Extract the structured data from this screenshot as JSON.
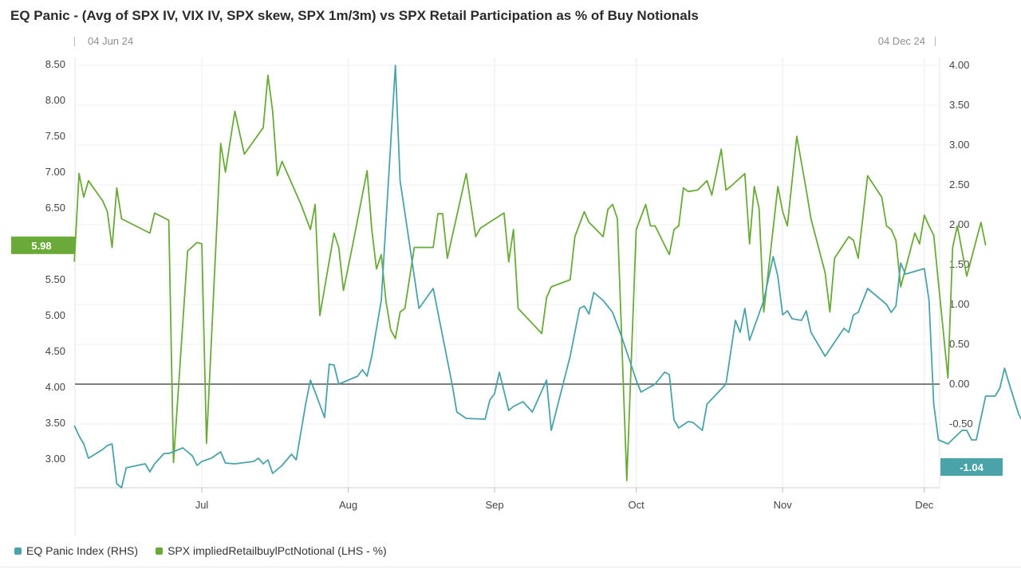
{
  "chart_data": {
    "type": "line",
    "title": "EQ Panic - (Avg of SPX IV, VIX IV, SPX skew, SPX 1m/3m) vs SPX Retail Participation as % of Buy Notionals",
    "range_start": "04 Jun 24",
    "range_end": "04 Dec 24",
    "x_tick_labels": [
      "Jul",
      "Aug",
      "Sep",
      "Oct",
      "Nov",
      "Dec"
    ],
    "x_tick_dates": [
      "2024-07-01",
      "2024-08-01",
      "2024-09-01",
      "2024-10-01",
      "2024-11-01",
      "2024-12-01"
    ],
    "x_range": [
      "2024-06-04",
      "2024-12-04"
    ],
    "left_axis": {
      "min": 2.6,
      "max": 8.6,
      "ticks": [
        "8.50",
        "8.00",
        "7.50",
        "7.00",
        "6.50",
        "5.50",
        "5.00",
        "4.50",
        "4.00",
        "3.50",
        "3.00"
      ]
    },
    "right_axis": {
      "min": -1.3,
      "max": 4.1,
      "ticks": [
        "4.00",
        "3.50",
        "3.00",
        "2.50",
        "2.00",
        "1.50",
        "1.00",
        "0.50",
        "0.00",
        "-0.50"
      ]
    },
    "zero_line": 0,
    "grid": true,
    "legend_position": "bottom-left",
    "series": [
      {
        "name": "SPX impliedRetailbuylPctNotional (LHS - %)",
        "axis": "left",
        "color": "#6aaa38",
        "last_label": "5.98",
        "points": [
          [
            "2024-06-04",
            5.75
          ],
          [
            "2024-06-05",
            6.98
          ],
          [
            "2024-06-06",
            6.65
          ],
          [
            "2024-06-07",
            6.88
          ],
          [
            "2024-06-10",
            6.6
          ],
          [
            "2024-06-11",
            6.45
          ],
          [
            "2024-06-12",
            5.95
          ],
          [
            "2024-06-13",
            6.78
          ],
          [
            "2024-06-14",
            6.35
          ],
          [
            "2024-06-17",
            6.25
          ],
          [
            "2024-06-20",
            6.15
          ],
          [
            "2024-06-21",
            6.43
          ],
          [
            "2024-06-24",
            6.33
          ],
          [
            "2024-06-25",
            2.95
          ],
          [
            "2024-06-28",
            5.9
          ],
          [
            "2024-06-30",
            6.02
          ],
          [
            "2024-07-01",
            6.0
          ],
          [
            "2024-07-02",
            3.22
          ],
          [
            "2024-07-05",
            7.4
          ],
          [
            "2024-07-06",
            7.0
          ],
          [
            "2024-07-08",
            7.85
          ],
          [
            "2024-07-10",
            7.25
          ],
          [
            "2024-07-14",
            7.62
          ],
          [
            "2024-07-15",
            8.35
          ],
          [
            "2024-07-16",
            7.85
          ],
          [
            "2024-07-17",
            6.95
          ],
          [
            "2024-07-18",
            7.15
          ],
          [
            "2024-07-22",
            6.55
          ],
          [
            "2024-07-24",
            6.2
          ],
          [
            "2024-07-25",
            6.55
          ],
          [
            "2024-07-26",
            5.0
          ],
          [
            "2024-07-29",
            6.15
          ],
          [
            "2024-07-30",
            5.95
          ],
          [
            "2024-07-31",
            5.35
          ],
          [
            "2024-08-02",
            6.0
          ],
          [
            "2024-08-05",
            7.02
          ],
          [
            "2024-08-06",
            6.2
          ],
          [
            "2024-08-07",
            5.65
          ],
          [
            "2024-08-08",
            5.85
          ],
          [
            "2024-08-09",
            5.2
          ],
          [
            "2024-08-10",
            4.8
          ],
          [
            "2024-08-11",
            4.68
          ],
          [
            "2024-08-12",
            5.05
          ],
          [
            "2024-08-13",
            5.1
          ],
          [
            "2024-08-15",
            5.95
          ],
          [
            "2024-08-16",
            5.95
          ],
          [
            "2024-08-19",
            5.95
          ],
          [
            "2024-08-20",
            6.42
          ],
          [
            "2024-08-21",
            6.42
          ],
          [
            "2024-08-22",
            5.8
          ],
          [
            "2024-08-26",
            6.98
          ],
          [
            "2024-08-28",
            6.1
          ],
          [
            "2024-08-29",
            6.22
          ],
          [
            "2024-09-03",
            6.43
          ],
          [
            "2024-09-04",
            5.75
          ],
          [
            "2024-09-05",
            6.2
          ],
          [
            "2024-09-06",
            5.1
          ],
          [
            "2024-09-11",
            4.75
          ],
          [
            "2024-09-12",
            5.25
          ],
          [
            "2024-09-13",
            5.4
          ],
          [
            "2024-09-15",
            5.45
          ],
          [
            "2024-09-17",
            5.5
          ],
          [
            "2024-09-18",
            6.1
          ],
          [
            "2024-09-20",
            6.45
          ],
          [
            "2024-09-21",
            6.3
          ],
          [
            "2024-09-24",
            6.1
          ],
          [
            "2024-09-25",
            6.48
          ],
          [
            "2024-09-26",
            6.55
          ],
          [
            "2024-09-27",
            6.35
          ],
          [
            "2024-09-29",
            2.7
          ],
          [
            "2024-10-01",
            6.2
          ],
          [
            "2024-10-03",
            6.55
          ],
          [
            "2024-10-04",
            6.25
          ],
          [
            "2024-10-05",
            6.25
          ],
          [
            "2024-10-08",
            5.85
          ],
          [
            "2024-10-09",
            6.2
          ],
          [
            "2024-10-10",
            6.25
          ],
          [
            "2024-10-11",
            6.78
          ],
          [
            "2024-10-12",
            6.73
          ],
          [
            "2024-10-14",
            6.75
          ],
          [
            "2024-10-16",
            6.88
          ],
          [
            "2024-10-17",
            6.68
          ],
          [
            "2024-10-19",
            7.32
          ],
          [
            "2024-10-20",
            6.75
          ],
          [
            "2024-10-21",
            6.8
          ],
          [
            "2024-10-24",
            6.98
          ],
          [
            "2024-10-25",
            6.0
          ],
          [
            "2024-10-26",
            6.8
          ],
          [
            "2024-10-27",
            6.5
          ],
          [
            "2024-10-28",
            5.05
          ],
          [
            "2024-10-31",
            6.8
          ],
          [
            "2024-11-01",
            6.45
          ],
          [
            "2024-11-02",
            6.25
          ],
          [
            "2024-11-04",
            7.5
          ],
          [
            "2024-11-06",
            6.75
          ],
          [
            "2024-11-07",
            6.35
          ],
          [
            "2024-11-10",
            5.6
          ],
          [
            "2024-11-11",
            5.05
          ],
          [
            "2024-11-12",
            5.8
          ],
          [
            "2024-11-15",
            6.1
          ],
          [
            "2024-11-16",
            6.05
          ],
          [
            "2024-11-17",
            5.8
          ],
          [
            "2024-11-19",
            6.95
          ],
          [
            "2024-11-22",
            6.65
          ],
          [
            "2024-11-23",
            6.25
          ],
          [
            "2024-11-24",
            6.2
          ],
          [
            "2024-11-25",
            6.05
          ],
          [
            "2024-11-26",
            5.4
          ],
          [
            "2024-11-29",
            6.15
          ],
          [
            "2024-11-30",
            6.0
          ],
          [
            "2024-12-01",
            6.4
          ],
          [
            "2024-12-02",
            6.25
          ],
          [
            "2024-12-03",
            6.12
          ],
          [
            "2024-12-06",
            4.13
          ],
          [
            "2024-12-07",
            5.95
          ],
          [
            "2024-12-08",
            6.25
          ],
          [
            "2024-12-10",
            5.55
          ],
          [
            "2024-12-13",
            6.3
          ],
          [
            "2024-12-14",
            5.98
          ]
        ]
      },
      {
        "name": "EQ Panic Index (RHS)",
        "axis": "right",
        "color": "#4aa3a8",
        "last_label": "-1.04",
        "points": [
          [
            "2024-06-04",
            -0.52
          ],
          [
            "2024-06-05",
            -0.65
          ],
          [
            "2024-06-06",
            -0.75
          ],
          [
            "2024-06-07",
            -0.93
          ],
          [
            "2024-06-10",
            -0.82
          ],
          [
            "2024-06-11",
            -0.77
          ],
          [
            "2024-06-12",
            -0.75
          ],
          [
            "2024-06-13",
            -1.25
          ],
          [
            "2024-06-14",
            -1.3
          ],
          [
            "2024-06-15",
            -1.05
          ],
          [
            "2024-06-19",
            -1.0
          ],
          [
            "2024-06-20",
            -1.1
          ],
          [
            "2024-06-21",
            -1.0
          ],
          [
            "2024-06-23",
            -0.87
          ],
          [
            "2024-06-24",
            -0.87
          ],
          [
            "2024-06-27",
            -0.8
          ],
          [
            "2024-06-28",
            -0.85
          ],
          [
            "2024-06-29",
            -0.9
          ],
          [
            "2024-06-30",
            -1.02
          ],
          [
            "2024-07-01",
            -0.97
          ],
          [
            "2024-07-03",
            -0.93
          ],
          [
            "2024-07-05",
            -0.85
          ],
          [
            "2024-07-06",
            -0.99
          ],
          [
            "2024-07-08",
            -1.0
          ],
          [
            "2024-07-12",
            -0.97
          ],
          [
            "2024-07-13",
            -0.93
          ],
          [
            "2024-07-14",
            -1.0
          ],
          [
            "2024-07-15",
            -0.95
          ],
          [
            "2024-07-16",
            -1.12
          ],
          [
            "2024-07-18",
            -1.02
          ],
          [
            "2024-07-20",
            -0.88
          ],
          [
            "2024-07-21",
            -0.95
          ],
          [
            "2024-07-23",
            -0.25
          ],
          [
            "2024-07-24",
            0.05
          ],
          [
            "2024-07-25",
            -0.1
          ],
          [
            "2024-07-27",
            -0.42
          ],
          [
            "2024-07-28",
            0.25
          ],
          [
            "2024-07-29",
            0.24
          ],
          [
            "2024-07-30",
            0.0
          ],
          [
            "2024-08-01",
            0.05
          ],
          [
            "2024-08-03",
            0.1
          ],
          [
            "2024-08-04",
            0.18
          ],
          [
            "2024-08-05",
            0.1
          ],
          [
            "2024-08-06",
            0.35
          ],
          [
            "2024-08-08",
            1.05
          ],
          [
            "2024-08-11",
            4.0
          ],
          [
            "2024-08-12",
            2.55
          ],
          [
            "2024-08-13",
            2.15
          ],
          [
            "2024-08-16",
            0.95
          ],
          [
            "2024-08-19",
            1.2
          ],
          [
            "2024-08-23",
            0.0
          ],
          [
            "2024-08-24",
            -0.35
          ],
          [
            "2024-08-26",
            -0.43
          ],
          [
            "2024-08-30",
            -0.44
          ],
          [
            "2024-08-31",
            -0.2
          ],
          [
            "2024-09-01",
            -0.12
          ],
          [
            "2024-09-02",
            0.15
          ],
          [
            "2024-09-04",
            -0.33
          ],
          [
            "2024-09-05",
            -0.28
          ],
          [
            "2024-09-06",
            -0.25
          ],
          [
            "2024-09-07",
            -0.22
          ],
          [
            "2024-09-09",
            -0.35
          ],
          [
            "2024-09-12",
            0.05
          ],
          [
            "2024-09-13",
            -0.58
          ],
          [
            "2024-09-17",
            0.35
          ],
          [
            "2024-09-19",
            0.95
          ],
          [
            "2024-09-20",
            0.98
          ],
          [
            "2024-09-21",
            0.88
          ],
          [
            "2024-09-22",
            1.15
          ],
          [
            "2024-09-24",
            1.05
          ],
          [
            "2024-09-26",
            0.9
          ],
          [
            "2024-09-28",
            0.58
          ],
          [
            "2024-10-01",
            0.05
          ],
          [
            "2024-10-02",
            -0.1
          ],
          [
            "2024-10-05",
            0.0
          ],
          [
            "2024-10-07",
            0.15
          ],
          [
            "2024-10-08",
            0.12
          ],
          [
            "2024-10-09",
            -0.45
          ],
          [
            "2024-10-10",
            -0.55
          ],
          [
            "2024-10-12",
            -0.47
          ],
          [
            "2024-10-13",
            -0.48
          ],
          [
            "2024-10-14",
            -0.53
          ],
          [
            "2024-10-15",
            -0.58
          ],
          [
            "2024-10-16",
            -0.25
          ],
          [
            "2024-10-20",
            0.0
          ],
          [
            "2024-10-22",
            0.8
          ],
          [
            "2024-10-23",
            0.65
          ],
          [
            "2024-10-24",
            0.95
          ],
          [
            "2024-10-25",
            0.55
          ],
          [
            "2024-10-28",
            1.05
          ],
          [
            "2024-10-30",
            1.6
          ],
          [
            "2024-10-31",
            1.35
          ],
          [
            "2024-11-01",
            0.87
          ],
          [
            "2024-11-02",
            0.92
          ],
          [
            "2024-11-03",
            0.82
          ],
          [
            "2024-11-05",
            0.8
          ],
          [
            "2024-11-06",
            0.92
          ],
          [
            "2024-11-07",
            0.65
          ],
          [
            "2024-11-10",
            0.35
          ],
          [
            "2024-11-14",
            0.7
          ],
          [
            "2024-11-15",
            0.65
          ],
          [
            "2024-11-16",
            0.87
          ],
          [
            "2024-11-17",
            0.9
          ],
          [
            "2024-11-19",
            1.2
          ],
          [
            "2024-11-23",
            1.0
          ],
          [
            "2024-11-24",
            0.9
          ],
          [
            "2024-11-25",
            0.98
          ],
          [
            "2024-11-26",
            1.52
          ],
          [
            "2024-11-27",
            1.38
          ],
          [
            "2024-12-01",
            1.45
          ],
          [
            "2024-12-02",
            1.05
          ],
          [
            "2024-12-03",
            -0.25
          ],
          [
            "2024-12-04",
            -0.7
          ],
          [
            "2024-12-06",
            -0.75
          ],
          [
            "2024-12-09",
            -0.58
          ],
          [
            "2024-12-10",
            -0.58
          ],
          [
            "2024-12-11",
            -0.7
          ],
          [
            "2024-12-12",
            -0.7
          ],
          [
            "2024-12-14",
            -0.15
          ],
          [
            "2024-12-16",
            -0.15
          ],
          [
            "2024-12-17",
            -0.05
          ],
          [
            "2024-12-18",
            0.2
          ],
          [
            "2024-12-19",
            0.0
          ],
          [
            "2024-12-21",
            -0.38
          ],
          [
            "2024-12-24",
            -0.7
          ],
          [
            "2024-12-26",
            -0.9
          ],
          [
            "2024-12-27",
            -0.83
          ],
          [
            "2024-12-29",
            -1.02
          ],
          [
            "2024-12-31",
            -1.1
          ],
          [
            "2025-01-01",
            -1.04
          ]
        ]
      }
    ]
  }
}
